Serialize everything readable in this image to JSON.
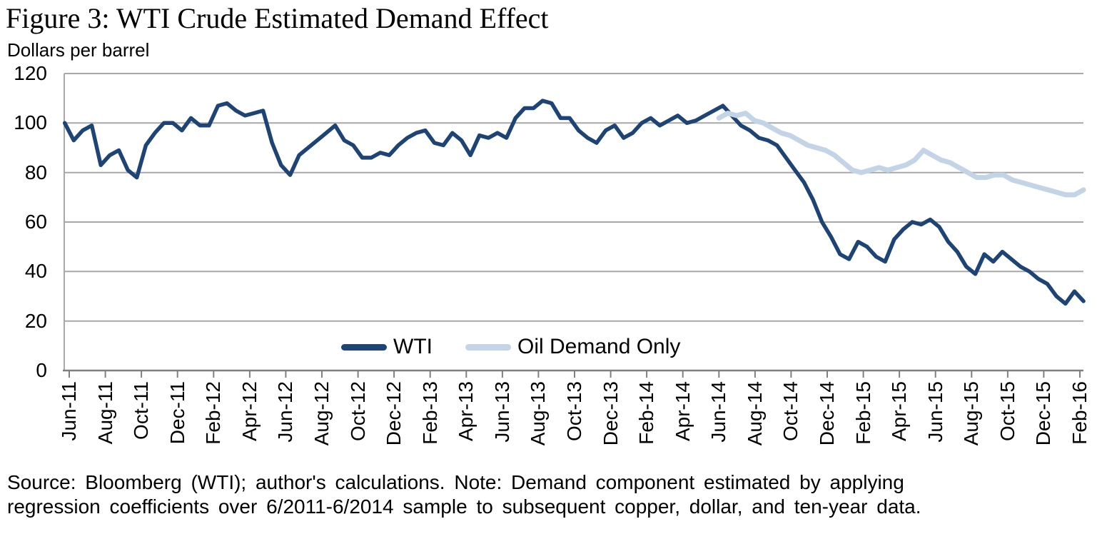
{
  "figure": {
    "title": "Figure 3: WTI Crude Estimated Demand Effect",
    "units_label": "Dollars per barrel",
    "source_note_lines": [
      "Source: Bloomberg (WTI); author's calculations. Note: Demand component estimated by applying",
      "regression coefficients over 6/2011-6/2014 sample to subsequent copper, dollar, and ten-year data."
    ]
  },
  "chart_data": {
    "type": "line",
    "title": "Figure 3: WTI Crude Estimated Demand Effect",
    "ylabel": "Dollars per barrel",
    "xlabel": "",
    "ylim": [
      0,
      120
    ],
    "yticks": [
      120,
      100,
      80,
      60,
      40,
      20,
      0
    ],
    "grid": "horizontal gridlines every 20, light gray",
    "legend_position": "inside bottom center",
    "xtick_labels": [
      "Jun-11",
      "Aug-11",
      "Oct-11",
      "Dec-11",
      "Feb-12",
      "Apr-12",
      "Jun-12",
      "Aug-12",
      "Oct-12",
      "Dec-12",
      "Feb-13",
      "Apr-13",
      "Jun-13",
      "Aug-13",
      "Oct-13",
      "Dec-13",
      "Feb-14",
      "Apr-14",
      "Jun-14",
      "Aug-14",
      "Oct-14",
      "Dec-14",
      "Feb-15",
      "Apr-15",
      "Jun-15",
      "Aug-15",
      "Oct-15",
      "Dec-15",
      "Feb-16"
    ],
    "x_note": "daily price data Jun-2011 to Feb-2016; values below sampled semi-monthly, in dollars per barrel",
    "series": [
      {
        "name": "WTI",
        "color": "#1E4475",
        "x_start_month": -0.25,
        "x_end_month": 56.2,
        "values": [
          100,
          93,
          97,
          99,
          83,
          87,
          89,
          81,
          78,
          91,
          96,
          100,
          100,
          97,
          102,
          99,
          99,
          107,
          108,
          105,
          103,
          104,
          105,
          92,
          83,
          79,
          87,
          90,
          93,
          96,
          99,
          93,
          91,
          86,
          86,
          88,
          87,
          91,
          94,
          96,
          97,
          92,
          91,
          96,
          93,
          87,
          95,
          94,
          96,
          94,
          102,
          106,
          106,
          109,
          108,
          102,
          102,
          97,
          94,
          92,
          97,
          99,
          94,
          96,
          100,
          102,
          99,
          101,
          103,
          100,
          101,
          103,
          105,
          107,
          103,
          99,
          97,
          94,
          93,
          91,
          86,
          81,
          76,
          69,
          60,
          54,
          47,
          45,
          52,
          50,
          46,
          44,
          53,
          57,
          60,
          59,
          61,
          58,
          52,
          48,
          42,
          39,
          47,
          44,
          48,
          45,
          42,
          40,
          37,
          35,
          30,
          27,
          32,
          28
        ]
      },
      {
        "name": "Oil Demand Only",
        "color": "#C4D4E7",
        "x_start_month": 36,
        "x_end_month": 56.2,
        "values": [
          102,
          104,
          103,
          104,
          101,
          100,
          98,
          96,
          95,
          93,
          91,
          90,
          89,
          87,
          84,
          81,
          80,
          81,
          82,
          81,
          82,
          83,
          85,
          89,
          87,
          85,
          84,
          82,
          80,
          78,
          78,
          79,
          79,
          77,
          76,
          75,
          74,
          73,
          72,
          71,
          71,
          73
        ]
      }
    ]
  }
}
